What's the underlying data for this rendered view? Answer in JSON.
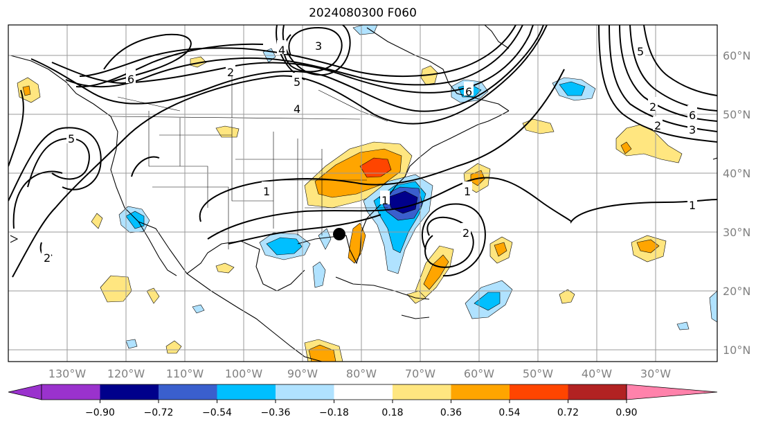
{
  "title": "2024080300 F060",
  "map": {
    "lon_ticks": [
      "130°W",
      "120°W",
      "110°W",
      "100°W",
      "90°W",
      "80°W",
      "70°W",
      "60°W",
      "50°W",
      "40°W",
      "30°W"
    ],
    "lat_ticks": [
      "10°N",
      "20°N",
      "30°N",
      "40°N",
      "50°N",
      "60°N"
    ],
    "contour_labels": [
      "5",
      "4",
      "3",
      "2",
      "6",
      "1",
      "5",
      "4",
      "3",
      "2",
      "6",
      "1",
      "1",
      "2",
      "1",
      "2",
      "2",
      "6",
      "5"
    ],
    "marker": "storm-center-dot"
  },
  "colorbar": {
    "tick_labels": [
      "−0.90",
      "−0.72",
      "−0.54",
      "−0.36",
      "−0.18",
      "0.18",
      "0.36",
      "0.54",
      "0.72",
      "0.90"
    ],
    "colors": [
      "#9a32cd",
      "#00008b",
      "#3a5fcd",
      "#00bfff",
      "#b0e2ff",
      "#ffffff",
      "#ffe680",
      "#ffa500",
      "#ff4500",
      "#b22222",
      "#ff82ab"
    ],
    "extend": "both"
  }
}
